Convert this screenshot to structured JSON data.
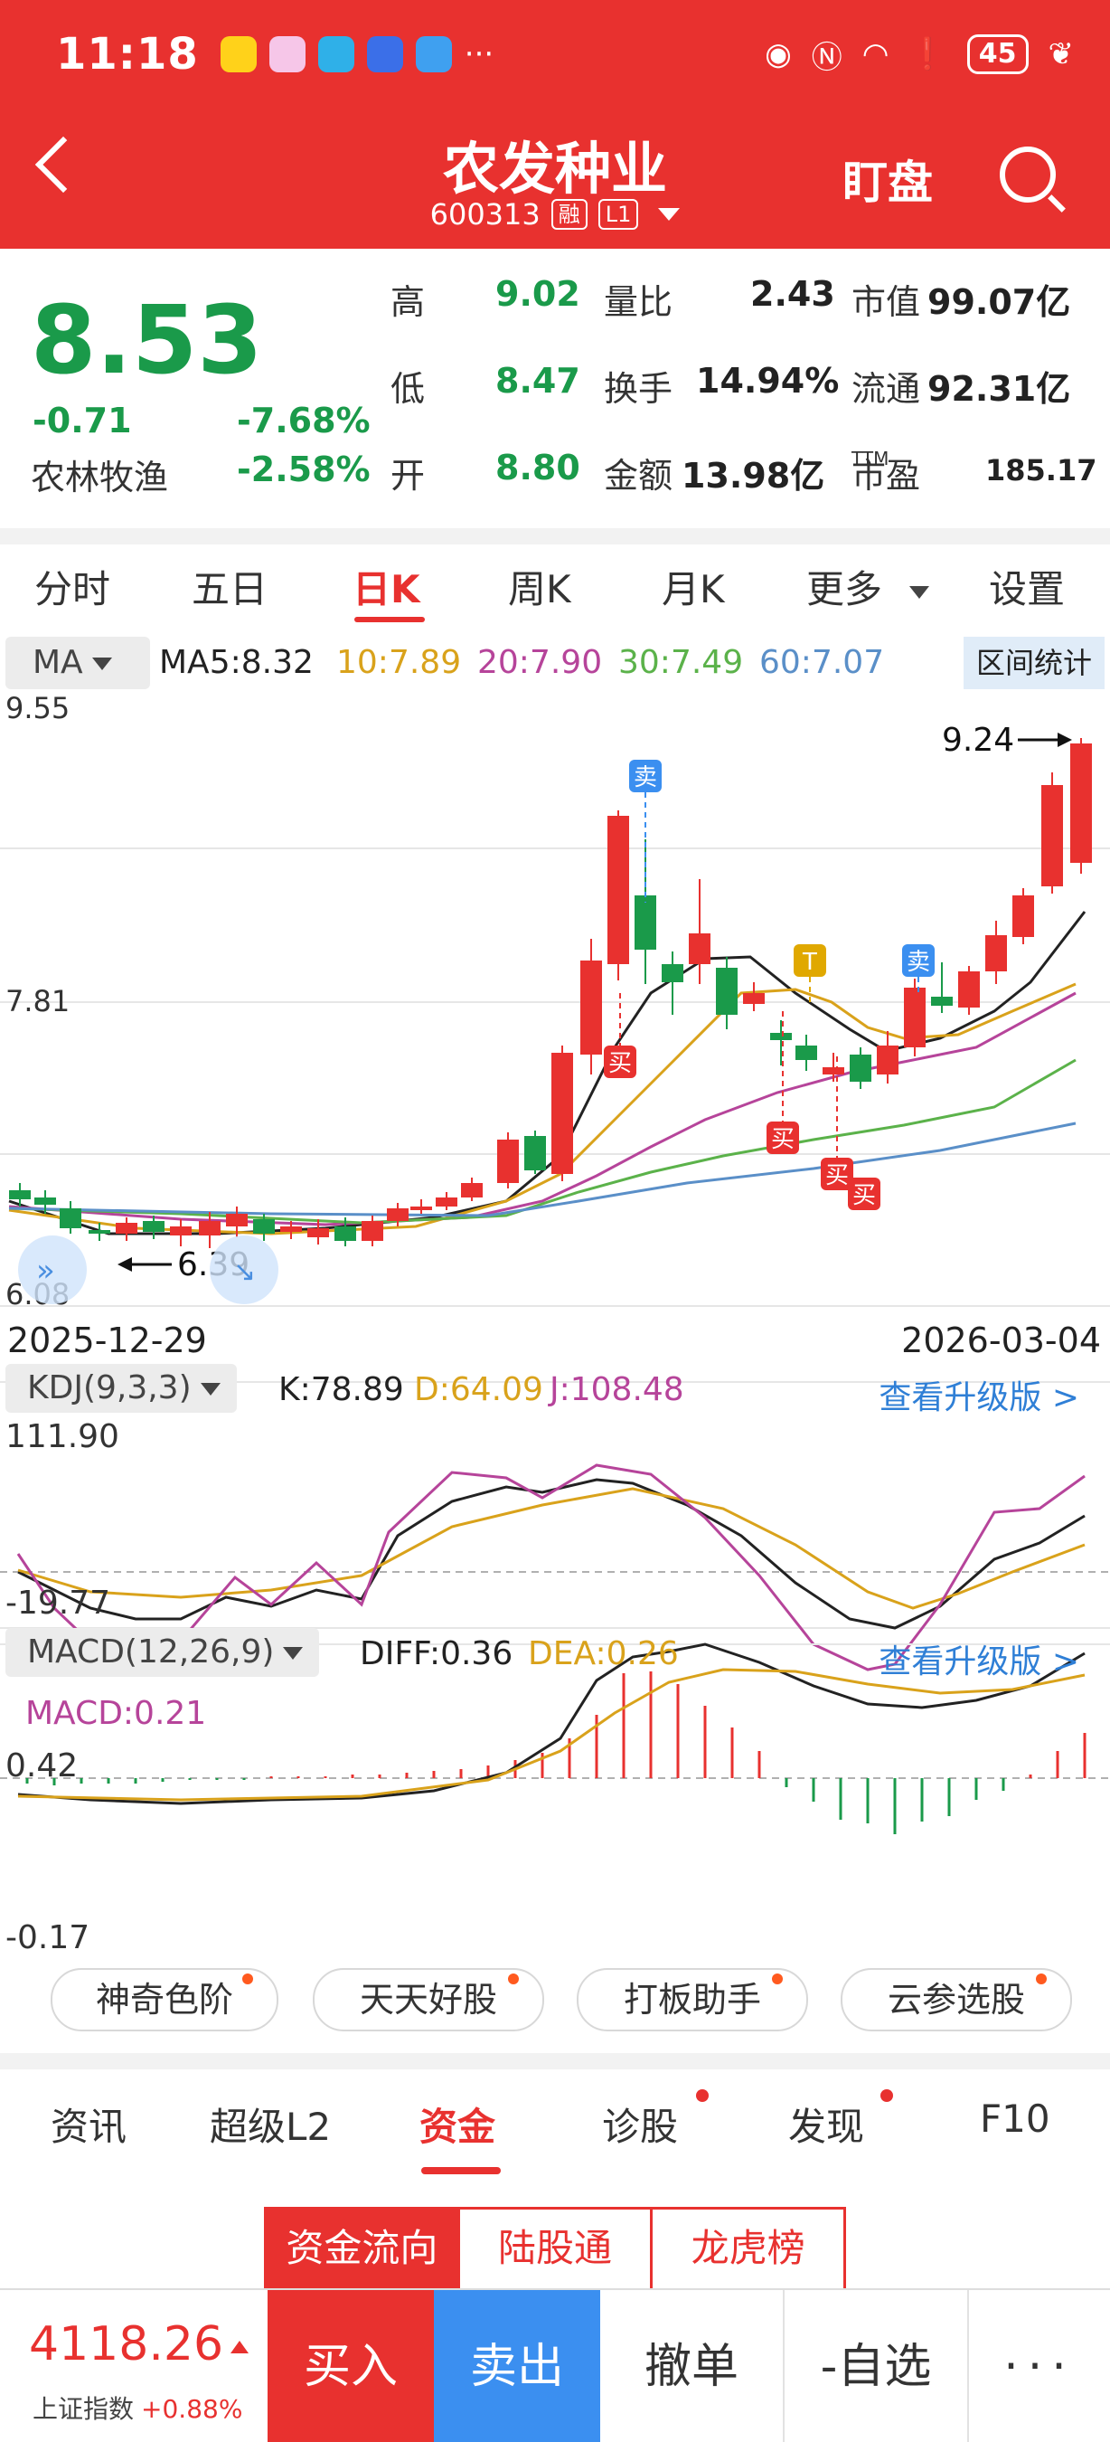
{
  "status": {
    "time": "11:18",
    "battery": "45"
  },
  "header": {
    "title": "农发种业",
    "code": "600313",
    "tag1": "融",
    "tag2": "L1",
    "watch_label": "盯盘"
  },
  "quote": {
    "price": "8.53",
    "change": "-0.71",
    "change_pct": "-7.68%",
    "sector": "农林牧渔",
    "sector_pct": "-2.58%",
    "high_label": "高",
    "high": "9.02",
    "low_label": "低",
    "low": "8.47",
    "open_label": "开",
    "open": "8.80",
    "vol_ratio_label": "量比",
    "vol_ratio": "2.43",
    "turnover_label": "换手",
    "turnover": "14.94%",
    "amount_label": "金额",
    "amount": "13.98亿",
    "mcap_label": "市值",
    "mcap": "99.07亿",
    "float_label": "流通",
    "float": "92.31亿",
    "pe_label": "市盈",
    "pe_sup": "TTM",
    "pe": "185.17"
  },
  "ktabs": [
    "分时",
    "五日",
    "日K",
    "周K",
    "月K",
    "更多",
    "设置"
  ],
  "ma": {
    "label": "MA",
    "ma5": "MA5:8.32",
    "ma10": "10:7.89",
    "ma20": "20:7.90",
    "ma30": "30:7.49",
    "ma60": "60:7.07",
    "range_label": "区间统计",
    "colors": {
      "ma5": "#222222",
      "ma10": "#d9a21b",
      "ma20": "#b6449a",
      "ma30": "#5bb24a",
      "ma60": "#5a8fc8"
    }
  },
  "kline": {
    "y_top": "9.55",
    "y_mid": "7.81",
    "y_bottom": "6.08",
    "high_mark": "9.24",
    "low_mark": "6.39",
    "start_date": "2025-12-29",
    "end_date": "2026-03-04",
    "signals": {
      "sell": "卖",
      "buy": "买",
      "t": "T"
    }
  },
  "kdj": {
    "label": "KDJ(9,3,3)",
    "k": "K:78.89",
    "d": "D:64.09",
    "j": "J:108.48",
    "top": "111.90",
    "bottom": "-19.77",
    "upgrade": "查看升级版 >"
  },
  "macd": {
    "label": "MACD(12,26,9)",
    "diff": "DIFF:0.36",
    "dea": "DEA:0.26",
    "macd": "MACD:0.21",
    "top": "0.42",
    "bottom": "-0.17",
    "upgrade": "查看升级版 >"
  },
  "features": [
    "神奇色阶",
    "天天好股",
    "打板助手",
    "云参选股"
  ],
  "btabs": [
    "资讯",
    "超级L2",
    "资金",
    "诊股",
    "发现",
    "F10"
  ],
  "segments": [
    "资金流向",
    "陆股通",
    "龙虎榜"
  ],
  "bottom": {
    "index_value": "4118.26",
    "index_name": "上证指数",
    "index_change": "+0.88%",
    "buy": "买入",
    "sell": "卖出",
    "cancel": "撤单",
    "fav": "-自选",
    "more": "···"
  }
}
